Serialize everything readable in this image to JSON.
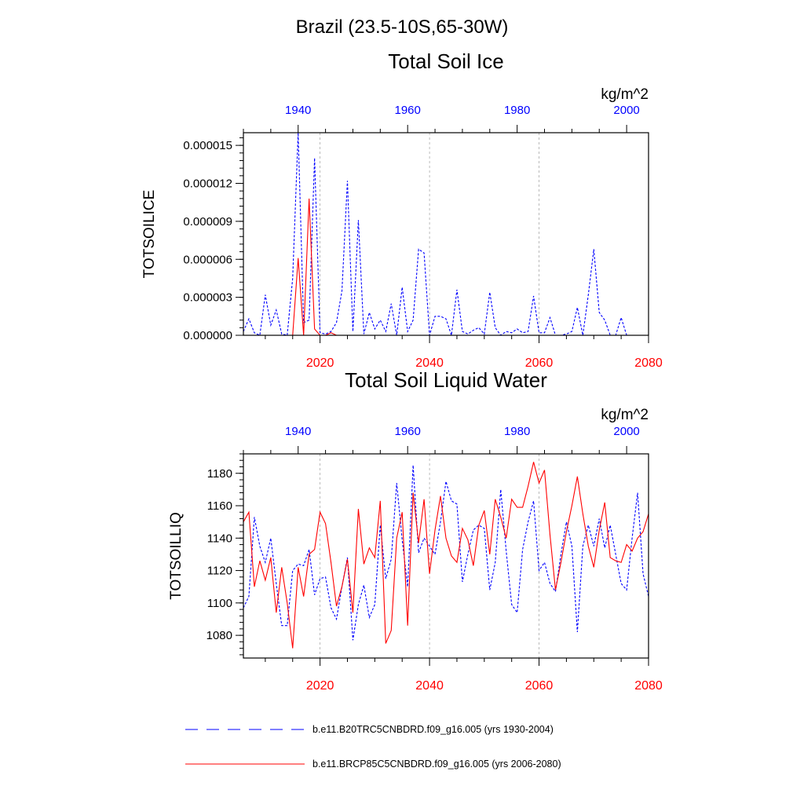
{
  "page": {
    "title": "Brazil (23.5-10S,65-30W)"
  },
  "colors": {
    "historical": "#0000ff",
    "future": "#ff0000",
    "grid": "#aaaaaa",
    "frame": "#000000"
  },
  "legend": {
    "entries": [
      {
        "label": "b.e11.B20TRC5CNBDRD.f09_g16.005 (yrs 1930-2004)",
        "color": "#0000ff",
        "style": "dashed"
      },
      {
        "label": "b.e11.BRCP85C5CNBDRD.f09_g16.005 (yrs 2006-2080)",
        "color": "#ff0000",
        "style": "solid"
      }
    ]
  },
  "chart_data": [
    {
      "type": "line",
      "title": "Total Soil Ice",
      "units": "kg/m^2",
      "ylabel": "TOTSOILICE",
      "ylim": [
        0,
        1.6e-05
      ],
      "yticks": [
        0,
        3e-06,
        6e-06,
        9e-06,
        1.2e-05,
        1.5e-05
      ],
      "ytick_labels": [
        "0.000000",
        "0.000003",
        "0.000006",
        "0.000009",
        "0.000012",
        "0.000015"
      ],
      "x_bottom": {
        "range": [
          2006,
          2080
        ],
        "ticks": [
          2020,
          2040,
          2060,
          2080
        ],
        "color": "#ff0000"
      },
      "x_top": {
        "range": [
          1930,
          2004
        ],
        "ticks": [
          1940,
          1960,
          1980,
          2000
        ],
        "color": "#0000ff"
      },
      "grid_x": [
        2020,
        2040,
        2060
      ],
      "series": [
        {
          "name": "b.e11.B20TRC5CNBDRD.f09_g16.005 (yrs 1930-2004)",
          "axis": "top",
          "color": "#0000ff",
          "style": "dashed",
          "x_start": 1930,
          "values": [
            3e-07,
            1.3e-06,
            2e-07,
            0.0,
            3.2e-06,
            8e-07,
            2e-06,
            1e-07,
            0.0,
            4.5e-06,
            1.6e-05,
            1e-06,
            1.2e-06,
            1.4e-05,
            2e-07,
            1e-07,
            3e-07,
            1e-06,
            3.5e-06,
            1.22e-05,
            3e-07,
            9.1e-06,
            1e-07,
            1.8e-06,
            5e-07,
            1.2e-06,
            3e-07,
            2.5e-06,
            0.0,
            3.8e-06,
            3e-07,
            1.2e-06,
            6.8e-06,
            6.5e-06,
            0.0,
            1.5e-06,
            1.5e-06,
            1.3e-06,
            0.0,
            3.6e-06,
            3e-07,
            1e-07,
            4e-07,
            6e-07,
            1e-07,
            3.4e-06,
            6e-07,
            0.0,
            3e-07,
            2e-07,
            5e-07,
            2e-07,
            3e-07,
            3.1e-06,
            2e-07,
            2e-07,
            1.4e-06,
            0.0,
            0.0,
            1e-07,
            3e-07,
            2.2e-06,
            0.0,
            3.2e-06,
            6.8e-06,
            1.8e-06,
            1.2e-06,
            0.0,
            0.0,
            1.4e-06,
            0.0,
            0.0,
            0.0,
            0.0,
            0.0
          ]
        },
        {
          "name": "b.e11.BRCP85C5CNBDRD.f09_g16.005 (yrs 2006-2080)",
          "axis": "bottom",
          "color": "#ff0000",
          "style": "solid",
          "x_start": 2006,
          "values": [
            0.0,
            0.0,
            0.0,
            0.0,
            0.0,
            0.0,
            0.0,
            0.0,
            0.0,
            0.0,
            6.1e-06,
            0.0,
            1.08e-05,
            5e-07,
            0.0,
            0.0,
            2e-07,
            0.0,
            0.0,
            0.0,
            0.0,
            0.0,
            0.0,
            0.0,
            0.0,
            0.0,
            0.0,
            0.0,
            0.0,
            0.0,
            0.0,
            0.0,
            0.0,
            0.0,
            0.0,
            0.0,
            0.0,
            0.0,
            0.0,
            0.0,
            0.0,
            0.0,
            0.0,
            0.0,
            0.0,
            0.0,
            0.0,
            0.0,
            0.0,
            0.0,
            0.0,
            0.0,
            0.0,
            0.0,
            0.0,
            0.0,
            0.0,
            0.0,
            0.0,
            0.0,
            0.0,
            0.0,
            0.0,
            0.0,
            0.0,
            0.0,
            0.0,
            0.0,
            0.0,
            0.0,
            0.0,
            0.0,
            0.0,
            0.0,
            0.0
          ]
        }
      ]
    },
    {
      "type": "line",
      "title": "Total Soil Liquid Water",
      "units": "kg/m^2",
      "ylabel": "TOTSOILLIQ",
      "ylim": [
        1066,
        1192
      ],
      "yticks": [
        1080,
        1100,
        1120,
        1140,
        1160,
        1180
      ],
      "ytick_labels": [
        "1080",
        "1100",
        "1120",
        "1140",
        "1160",
        "1180"
      ],
      "x_bottom": {
        "range": [
          2006,
          2080
        ],
        "ticks": [
          2020,
          2040,
          2060,
          2080
        ],
        "color": "#ff0000"
      },
      "x_top": {
        "range": [
          1930,
          2004
        ],
        "ticks": [
          1940,
          1960,
          1980,
          2000
        ],
        "color": "#0000ff"
      },
      "grid_x": [
        2020,
        2040,
        2060
      ],
      "series": [
        {
          "name": "b.e11.B20TRC5CNBDRD.f09_g16.005 (yrs 1930-2004)",
          "axis": "top",
          "color": "#0000ff",
          "style": "dashed",
          "x_start": 1930,
          "values": [
            1097,
            1104,
            1153,
            1135,
            1125,
            1140,
            1112,
            1086,
            1086,
            1120,
            1124,
            1123,
            1133,
            1105,
            1115,
            1116,
            1097,
            1090,
            1110,
            1128,
            1077,
            1099,
            1111,
            1091,
            1099,
            1148,
            1115,
            1127,
            1174,
            1139,
            1110,
            1185,
            1131,
            1140,
            1135,
            1130,
            1150,
            1175,
            1163,
            1161,
            1113,
            1130,
            1145,
            1148,
            1146,
            1108,
            1125,
            1170,
            1132,
            1099,
            1094,
            1133,
            1150,
            1163,
            1120,
            1125,
            1112,
            1107,
            1130,
            1150,
            1135,
            1082,
            1135,
            1148,
            1135,
            1152,
            1134,
            1148,
            1130,
            1112,
            1108,
            1140,
            1168,
            1118,
            1104
          ]
        },
        {
          "name": "b.e11.BRCP85C5CNBDRD.f09_g16.005 (yrs 2006-2080)",
          "axis": "bottom",
          "color": "#ff0000",
          "style": "solid",
          "x_start": 2006,
          "values": [
            1150,
            1156,
            1110,
            1126,
            1114,
            1128,
            1094,
            1122,
            1100,
            1072,
            1122,
            1104,
            1130,
            1133,
            1156,
            1149,
            1125,
            1098,
            1110,
            1127,
            1094,
            1158,
            1124,
            1134,
            1128,
            1163,
            1075,
            1083,
            1140,
            1156,
            1086,
            1168,
            1137,
            1164,
            1118,
            1145,
            1166,
            1140,
            1129,
            1125,
            1146,
            1139,
            1123,
            1148,
            1157,
            1130,
            1164,
            1153,
            1140,
            1164,
            1159,
            1159,
            1172,
            1187,
            1174,
            1182,
            1142,
            1108,
            1125,
            1144,
            1160,
            1178,
            1155,
            1135,
            1122,
            1145,
            1162,
            1128,
            1126,
            1125,
            1136,
            1132,
            1140,
            1144,
            1155
          ]
        }
      ]
    }
  ]
}
